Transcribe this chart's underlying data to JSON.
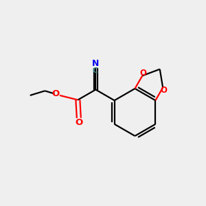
{
  "background_color": "#efefef",
  "bond_color": "#000000",
  "oxygen_color": "#ff0000",
  "nitrogen_color": "#0000ee",
  "carbon_label_color": "#3a8080",
  "figsize": [
    3.0,
    3.0
  ],
  "dpi": 100,
  "xlim": [
    0,
    10
  ],
  "ylim": [
    0,
    10
  ]
}
